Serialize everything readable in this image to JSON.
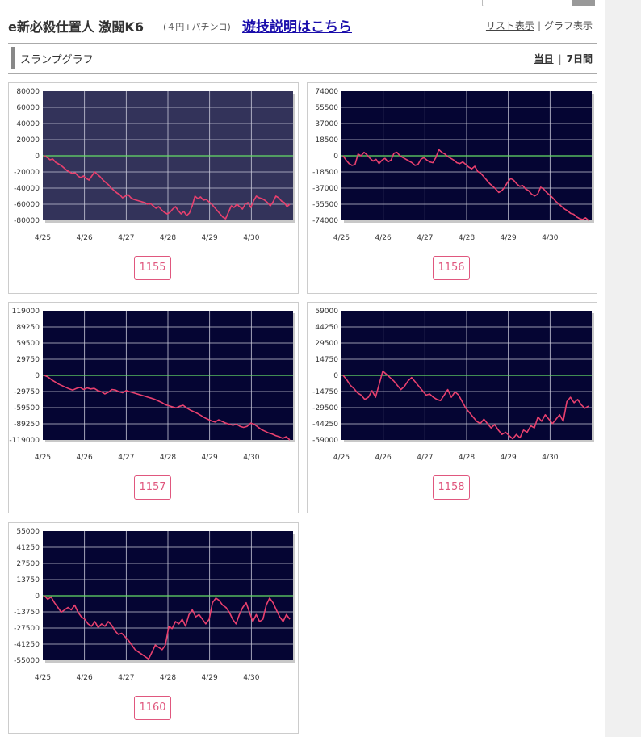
{
  "header": {
    "title": "e新必殺仕置人 激闘K6",
    "subtitle": "(４円+パチンコ)",
    "rule_link": "遊技説明はこちら",
    "list_view": "リスト表示",
    "separator": "|",
    "graph_view": "グラフ表示"
  },
  "section": {
    "title": "スランプグラフ",
    "today": "当日",
    "separator": "|",
    "week": "7日間"
  },
  "colors": {
    "plot_bg_dim": "#33335a",
    "plot_bg": "#050533",
    "line": "#e8406e",
    "zero_line": "#66dd66",
    "grid": "#c8c8d8",
    "button_border": "#e0577e"
  },
  "chart_data": [
    {
      "type": "line",
      "slot": "1155",
      "background": "dim",
      "y_ticks": [
        "80000",
        "60000",
        "40000",
        "20000",
        "0",
        "-20000",
        "-40000",
        "-60000",
        "-80000"
      ],
      "x_ticks": [
        "4/25",
        "4/26",
        "4/27",
        "4/28",
        "4/29",
        "4/30"
      ],
      "ylim": [
        -80000,
        80000
      ],
      "values": [
        0,
        -2000,
        -5000,
        -4000,
        -8000,
        -10000,
        -12000,
        -15000,
        -18000,
        -20000,
        -22000,
        -21000,
        -25000,
        -27000,
        -25000,
        -28000,
        -30000,
        -25000,
        -20000,
        -23000,
        -26000,
        -30000,
        -33000,
        -36000,
        -40000,
        -43000,
        -46000,
        -48000,
        -52000,
        -50000,
        -48000,
        -52000,
        -54000,
        -55000,
        -56000,
        -57000,
        -58000,
        -60000,
        -59000,
        -62000,
        -65000,
        -63000,
        -67000,
        -70000,
        -72000,
        -70000,
        -66000,
        -63000,
        -68000,
        -72000,
        -69000,
        -74000,
        -71000,
        -62000,
        -50000,
        -53000,
        -51000,
        -55000,
        -54000,
        -57000,
        -60000,
        -64000,
        -68000,
        -72000,
        -76000,
        -78000,
        -70000,
        -62000,
        -64000,
        -60000,
        -63000,
        -66000,
        -60000,
        -58000,
        -64000,
        -56000,
        -50000,
        -52000,
        -53000,
        -55000,
        -58000,
        -62000,
        -57000,
        -50000,
        -52000,
        -56000,
        -58000,
        -63000,
        -60000
      ]
    },
    {
      "type": "line",
      "slot": "1156",
      "background": "dark",
      "y_ticks": [
        "74000",
        "55500",
        "37000",
        "18500",
        "0",
        "-18500",
        "-37000",
        "-55500",
        "-74000"
      ],
      "x_ticks": [
        "4/25",
        "4/26",
        "4/27",
        "4/28",
        "4/29",
        "4/30"
      ],
      "ylim": [
        -74000,
        74000
      ],
      "values": [
        0,
        -5000,
        -9000,
        -11000,
        -10000,
        2000,
        0,
        4000,
        1000,
        -3000,
        -6000,
        -4000,
        -9000,
        -5000,
        -3000,
        -7000,
        -5000,
        3000,
        4000,
        0,
        -2000,
        -4000,
        -6000,
        -8000,
        -11000,
        -10000,
        -4000,
        -2000,
        -5000,
        -7000,
        -8000,
        -2000,
        7000,
        4000,
        2000,
        -1000,
        -3000,
        -5000,
        -8000,
        -9000,
        -7000,
        -10000,
        -13000,
        -15000,
        -12000,
        -18000,
        -20000,
        -24000,
        -28000,
        -32000,
        -35000,
        -38000,
        -42000,
        -40000,
        -36000,
        -30000,
        -26000,
        -28000,
        -32000,
        -35000,
        -34000,
        -38000,
        -40000,
        -44000,
        -46000,
        -44000,
        -36000,
        -38000,
        -42000,
        -45000,
        -48000,
        -52000,
        -55000,
        -58000,
        -61000,
        -63000,
        -66000,
        -67000,
        -70000,
        -72000,
        -73000,
        -71000,
        -74000
      ]
    },
    {
      "type": "line",
      "slot": "1157",
      "background": "dark",
      "y_ticks": [
        "119000",
        "89250",
        "59500",
        "29750",
        "0",
        "-29750",
        "-59500",
        "-89250",
        "-119000"
      ],
      "x_ticks": [
        "4/25",
        "4/26",
        "4/27",
        "4/28",
        "4/29",
        "4/30"
      ],
      "ylim": [
        -119000,
        119000
      ],
      "values": [
        0,
        -3000,
        -8000,
        -12000,
        -16000,
        -19000,
        -22000,
        -25000,
        -27000,
        -24000,
        -22000,
        -26000,
        -23000,
        -25000,
        -24000,
        -28000,
        -30000,
        -34000,
        -31000,
        -26000,
        -27000,
        -30000,
        -32000,
        -28000,
        -30000,
        -32000,
        -34000,
        -36000,
        -38000,
        -40000,
        -42000,
        -44000,
        -47000,
        -50000,
        -54000,
        -56000,
        -58000,
        -60000,
        -57000,
        -55000,
        -60000,
        -64000,
        -67000,
        -70000,
        -74000,
        -78000,
        -81000,
        -84000,
        -86000,
        -82000,
        -85000,
        -88000,
        -90000,
        -92000,
        -90000,
        -94000,
        -96000,
        -94000,
        -88000,
        -90000,
        -95000,
        -100000,
        -103000,
        -106000,
        -108000,
        -111000,
        -113000,
        -116000,
        -113000,
        -119000
      ]
    },
    {
      "type": "line",
      "slot": "1158",
      "background": "dark",
      "y_ticks": [
        "59000",
        "44250",
        "29500",
        "14750",
        "0",
        "-14750",
        "-29500",
        "-44250",
        "-59000"
      ],
      "x_ticks": [
        "4/25",
        "4/26",
        "4/27",
        "4/28",
        "4/29",
        "4/30"
      ],
      "ylim": [
        -59000,
        59000
      ],
      "values": [
        0,
        -4000,
        -9000,
        -12000,
        -16000,
        -18000,
        -22000,
        -20000,
        -14000,
        -20000,
        -8000,
        4000,
        1000,
        -2000,
        -5000,
        -9000,
        -13000,
        -10000,
        -5000,
        -2000,
        -6000,
        -10000,
        -14000,
        -18000,
        -17000,
        -20000,
        -22000,
        -23000,
        -18000,
        -13000,
        -20000,
        -15000,
        -18000,
        -24000,
        -30000,
        -34000,
        -38000,
        -42000,
        -44000,
        -40000,
        -44000,
        -48000,
        -45000,
        -50000,
        -54000,
        -52000,
        -55000,
        -58000,
        -54000,
        -57000,
        -50000,
        -52000,
        -46000,
        -48000,
        -38000,
        -42000,
        -36000,
        -40000,
        -44000,
        -40000,
        -36000,
        -42000,
        -24000,
        -20000,
        -25000,
        -22000,
        -27000,
        -30000,
        -28000
      ]
    },
    {
      "type": "line",
      "slot": "1160",
      "background": "dark",
      "y_ticks": [
        "55000",
        "41250",
        "27500",
        "13750",
        "0",
        "-13750",
        "-27500",
        "-41250",
        "-55000"
      ],
      "x_ticks": [
        "4/25",
        "4/26",
        "4/27",
        "4/28",
        "4/29",
        "4/30"
      ],
      "ylim": [
        -55000,
        55000
      ],
      "values": [
        0,
        -3000,
        -1000,
        -6000,
        -10000,
        -14000,
        -12000,
        -10000,
        -12000,
        -8000,
        -14000,
        -18000,
        -20000,
        -24000,
        -26000,
        -22000,
        -27000,
        -24000,
        -26000,
        -22000,
        -25000,
        -30000,
        -33000,
        -32000,
        -35000,
        -38000,
        -42000,
        -46000,
        -48000,
        -50000,
        -52000,
        -54000,
        -48000,
        -42000,
        -44000,
        -46000,
        -42000,
        -26000,
        -28000,
        -22000,
        -24000,
        -20000,
        -26000,
        -16000,
        -12000,
        -18000,
        -16000,
        -20000,
        -24000,
        -20000,
        -6000,
        -2000,
        -4000,
        -8000,
        -10000,
        -14000,
        -20000,
        -24000,
        -16000,
        -10000,
        -6000,
        -14000,
        -22000,
        -16000,
        -22000,
        -20000,
        -8000,
        -2000,
        -6000,
        -12000,
        -18000,
        -22000,
        -16000,
        -20000
      ]
    }
  ]
}
